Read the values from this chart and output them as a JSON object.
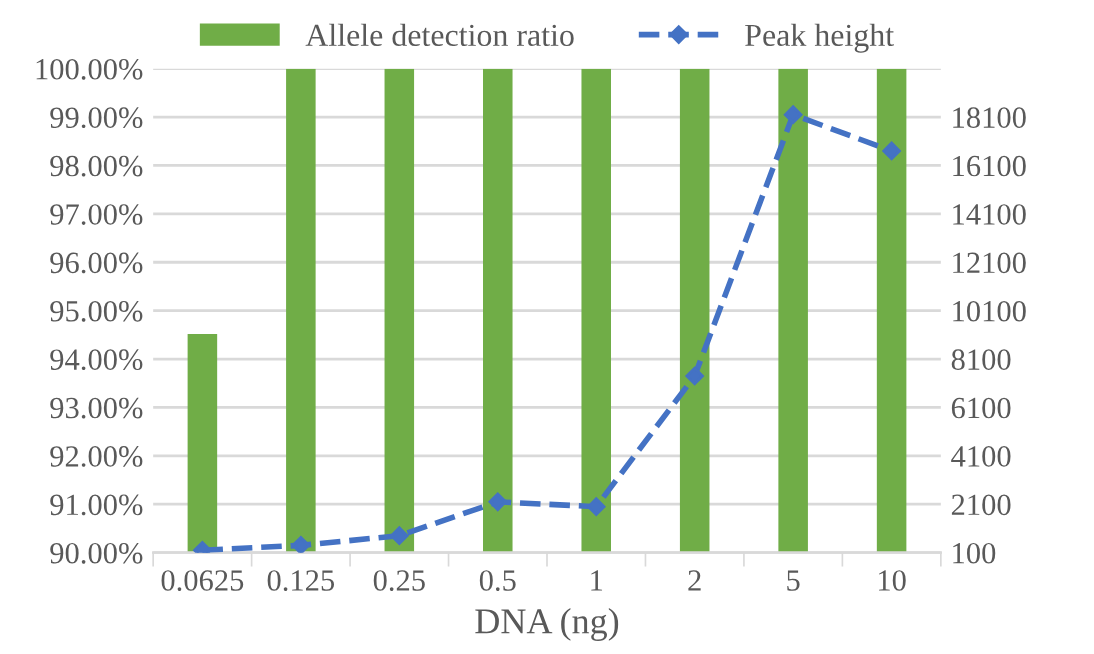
{
  "chart_data": {
    "type": "bar",
    "xlabel": "DNA (ng)",
    "categories": [
      "0.0625",
      "0.125",
      "0.25",
      "0.5",
      "1",
      "2",
      "5",
      "10"
    ],
    "series": [
      {
        "name": "Allele detection ratio",
        "color": "#70ad47",
        "values": [
          94.52,
          100,
          100,
          100,
          100,
          100,
          100,
          100
        ]
      },
      {
        "name": "Peak height",
        "type": "line",
        "axis": "y2",
        "color": "#4472c4",
        "marker": "diamond",
        "line_style": "dashed",
        "values": [
          200,
          400,
          800,
          2200,
          2000,
          7400,
          18200,
          16700
        ]
      }
    ],
    "ylim": [
      90,
      100
    ],
    "yticks": [
      {
        "value": 90,
        "label": "90.00%"
      },
      {
        "value": 91,
        "label": "91.00%"
      },
      {
        "value": 92,
        "label": "92.00%"
      },
      {
        "value": 93,
        "label": "93.00%"
      },
      {
        "value": 94,
        "label": "94.00%"
      },
      {
        "value": 95,
        "label": "95.00%"
      },
      {
        "value": 96,
        "label": "96.00%"
      },
      {
        "value": 97,
        "label": "97.00%"
      },
      {
        "value": 98,
        "label": "98.00%"
      },
      {
        "value": 99,
        "label": "99.00%"
      },
      {
        "value": 100,
        "label": "100.00%"
      }
    ],
    "y2lim": [
      100,
      20100
    ],
    "y2ticks": [
      100,
      2100,
      4100,
      6100,
      8100,
      10100,
      12100,
      14100,
      16100,
      18100
    ],
    "grid": "y",
    "legend": "top"
  }
}
